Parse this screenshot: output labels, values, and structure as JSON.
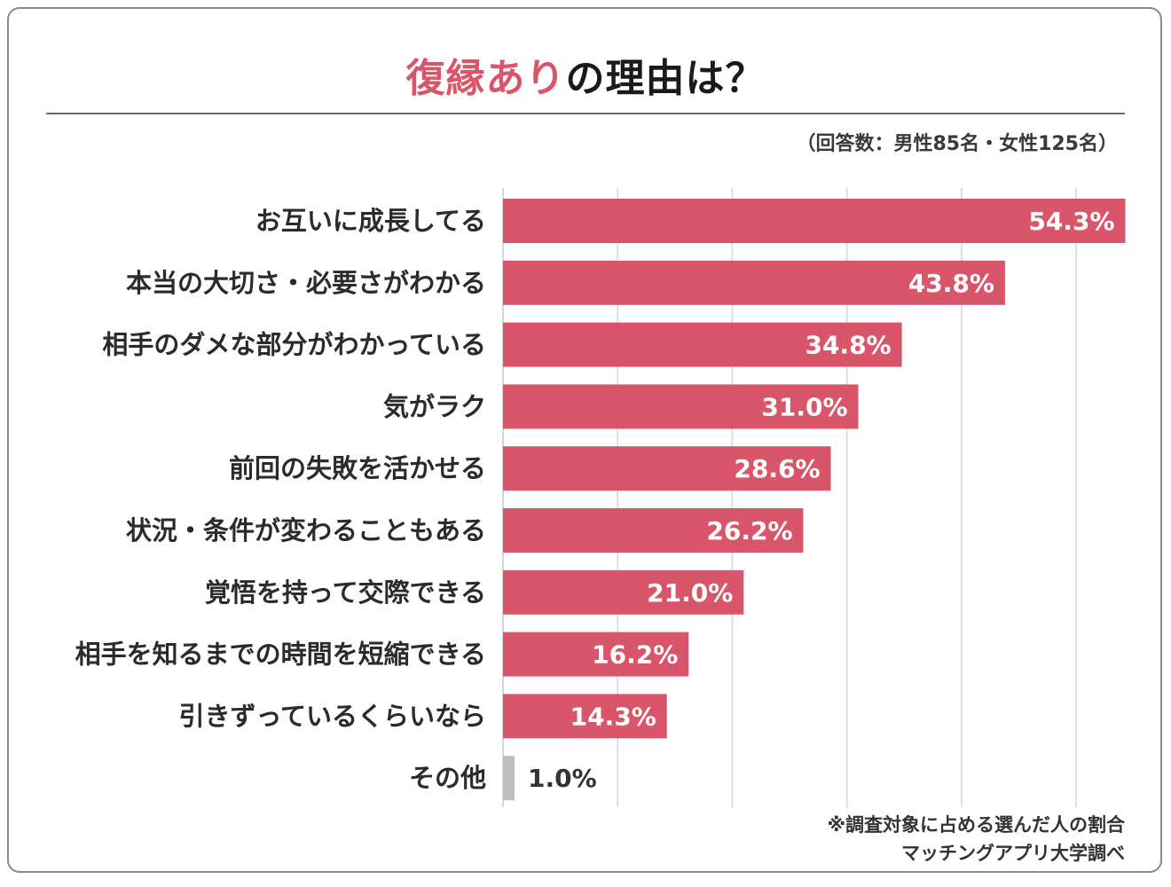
{
  "title": {
    "accent": "復縁あり",
    "rest": "の理由は？"
  },
  "respondents_note": "（回答数：男性85名・女性125名）",
  "footnote": "※調査対象に占める選んだ人の割合",
  "credit": "マッチングアプリ大学調べ",
  "colors": {
    "bar": "#d9566a",
    "bar_other": "#bfbfbf",
    "grid": "#d6d6d6",
    "title_accent": "#d9566a"
  },
  "chart_data": {
    "type": "bar",
    "orientation": "horizontal",
    "title": "復縁ありの理由は？",
    "unit": "%",
    "xlim": [
      0,
      55
    ],
    "grid": true,
    "categories": [
      "お互いに成長してる",
      "本当の大切さ・必要さがわかる",
      "相手のダメな部分がわかっている",
      "気がラク",
      "前回の失敗を活かせる",
      "状況・条件が変わることもある",
      "覚悟を持って交際できる",
      "相手を知るまでの時間を短縮できる",
      "引きずっているくらいなら",
      "その他"
    ],
    "values": [
      54.3,
      43.8,
      34.8,
      31.0,
      28.6,
      26.2,
      21.0,
      16.2,
      14.3,
      1.0
    ],
    "value_labels": [
      "54.3%",
      "43.8%",
      "34.8%",
      "31.0%",
      "28.6%",
      "26.2%",
      "21.0%",
      "16.2%",
      "14.3%",
      "1.0%"
    ]
  }
}
